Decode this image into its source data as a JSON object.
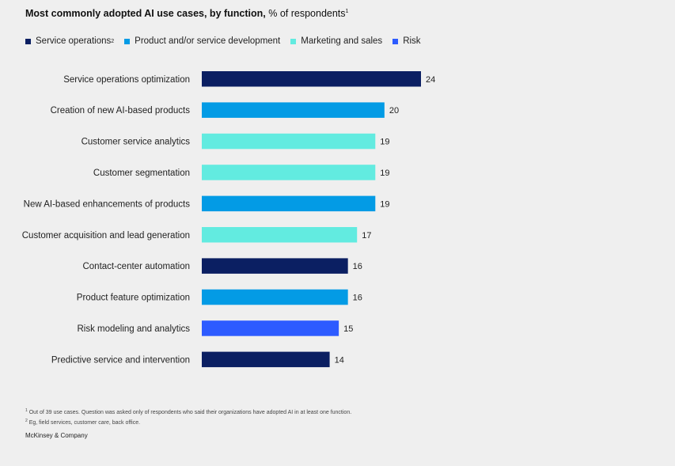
{
  "title": {
    "bold": "Most commonly adopted AI use cases, by function,",
    "rest": " % of respondents",
    "sup": "1"
  },
  "legend": [
    {
      "label": "Service operations",
      "sup": "2",
      "color": "#0b1f62"
    },
    {
      "label": "Product and/or service development",
      "sup": "",
      "color": "#039be5"
    },
    {
      "label": "Marketing and sales",
      "sup": "",
      "color": "#62ebe0"
    },
    {
      "label": "Risk",
      "sup": "",
      "color": "#2d5bff"
    }
  ],
  "chart_data": {
    "type": "bar",
    "orientation": "horizontal",
    "categories": [
      "Service operations optimization",
      "Creation of new AI-based products",
      "Customer service analytics",
      "Customer segmentation",
      "New AI-based enhancements of products",
      "Customer acquisition and lead generation",
      "Contact-center automation",
      "Product feature optimization",
      "Risk modeling and analytics",
      "Predictive service and intervention"
    ],
    "values": [
      24,
      20,
      19,
      19,
      19,
      17,
      16,
      16,
      15,
      14
    ],
    "function": [
      "Service operations",
      "Product and/or service development",
      "Marketing and sales",
      "Marketing and sales",
      "Product and/or service development",
      "Marketing and sales",
      "Service operations",
      "Product and/or service development",
      "Risk",
      "Service operations"
    ],
    "xlim": [
      0,
      24
    ],
    "grid": false,
    "legend_position": "top-left"
  },
  "footnotes": [
    {
      "sup": "1",
      "text": "Out of 39 use cases. Question was asked only of respondents who said their organizations have adopted AI in at least one function."
    },
    {
      "sup": "2",
      "text": "Eg, field services, customer care, back office."
    }
  ],
  "brand": "McKinsey & Company"
}
